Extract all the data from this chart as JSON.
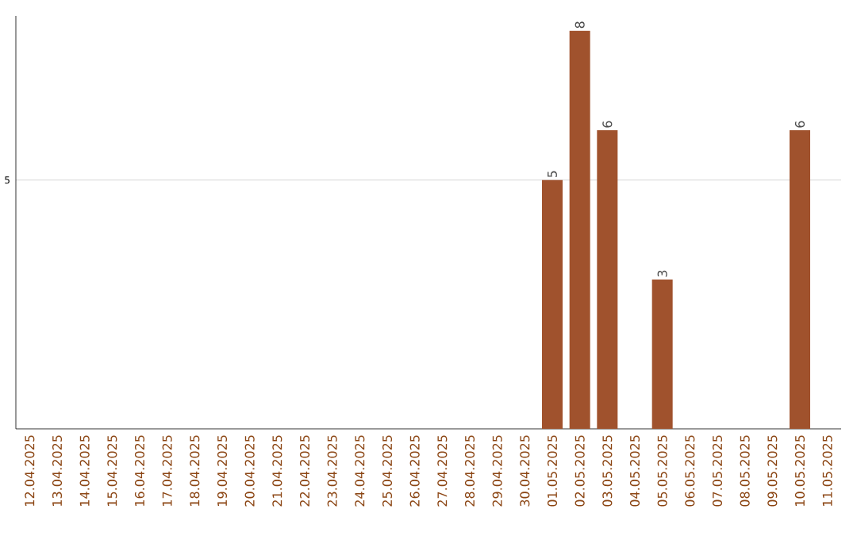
{
  "chart_data": {
    "type": "bar",
    "categories": [
      "12.04.2025",
      "13.04.2025",
      "14.04.2025",
      "15.04.2025",
      "16.04.2025",
      "17.04.2025",
      "18.04.2025",
      "19.04.2025",
      "20.04.2025",
      "21.04.2025",
      "22.04.2025",
      "23.04.2025",
      "24.04.2025",
      "25.04.2025",
      "26.04.2025",
      "27.04.2025",
      "28.04.2025",
      "29.04.2025",
      "30.04.2025",
      "01.05.2025",
      "02.05.2025",
      "03.05.2025",
      "04.05.2025",
      "05.05.2025",
      "06.05.2025",
      "07.05.2025",
      "08.05.2025",
      "09.05.2025",
      "10.05.2025",
      "11.05.2025"
    ],
    "values": [
      null,
      null,
      null,
      null,
      null,
      null,
      null,
      null,
      null,
      null,
      null,
      null,
      null,
      null,
      null,
      null,
      null,
      null,
      null,
      5,
      8,
      6,
      null,
      3,
      null,
      null,
      null,
      null,
      6,
      null
    ],
    "color": "#a0522d",
    "ylim": [
      0,
      8.3
    ],
    "yticks": [
      5
    ],
    "grid": "y",
    "data_labels": true
  }
}
